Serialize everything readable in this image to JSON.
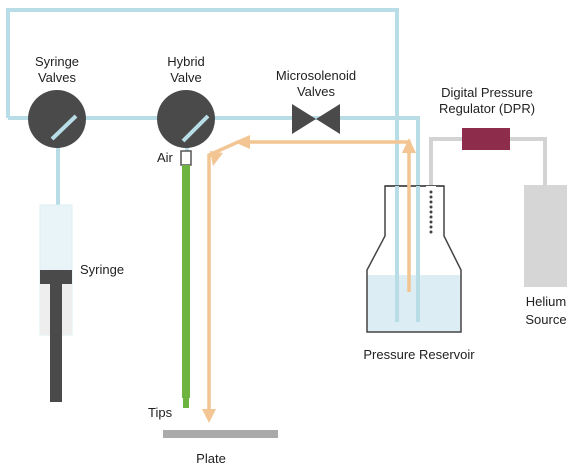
{
  "labels": {
    "syringe_valves_1": "Syringe",
    "syringe_valves_2": "Valves",
    "hybrid_valve_1": "Hybrid",
    "hybrid_valve_2": "Valve",
    "microsolenoid_1": "Microsolenoid",
    "microsolenoid_2": "Valves",
    "dpr_1": "Digital Pressure",
    "dpr_2": "Regulator (DPR)",
    "air": "Air",
    "syringe": "Syringe",
    "helium_1": "Helium",
    "helium_2": "Source",
    "pressure_reservoir": "Pressure Reservoir",
    "tips": "Tips",
    "plate": "Plate"
  },
  "colors": {
    "tubing": "#b9dde6",
    "flow_arrow": "#f2c592",
    "valve": "#4a4a4a",
    "tip": "#6cb33f",
    "regulator": "#8e2c4b",
    "gas_tube": "#d3d3d3",
    "helium_cylinder": "#d6d6d6",
    "liquid": "#dceef4",
    "plate": "#aaaaaa"
  }
}
